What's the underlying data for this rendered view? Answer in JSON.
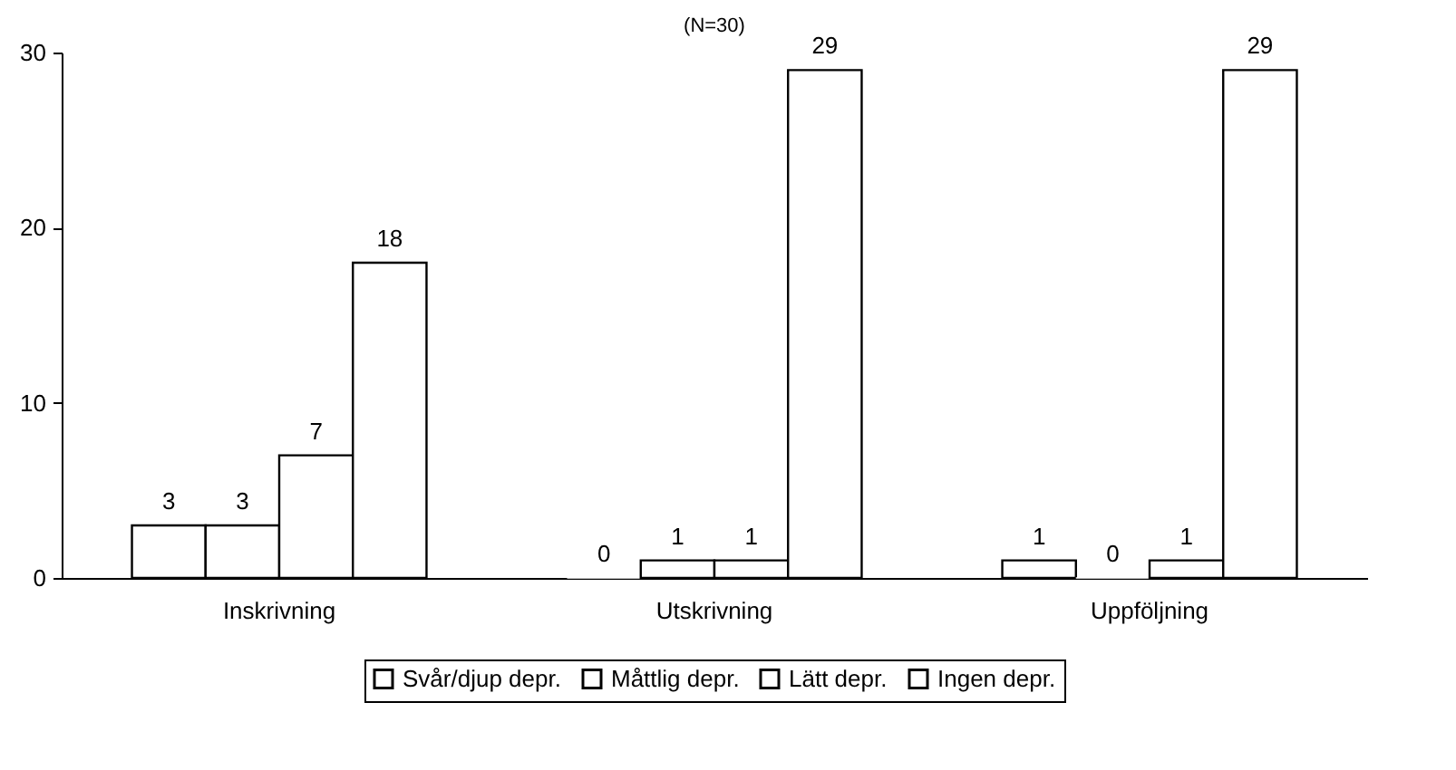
{
  "chart_data": {
    "type": "bar",
    "title": "(N=30)",
    "categories": [
      "Inskrivning",
      "Utskrivning",
      "Uppföljning"
    ],
    "series": [
      {
        "name": "Svår/djup depr.",
        "color": "#ffffff",
        "values": [
          3,
          0,
          1
        ]
      },
      {
        "name": "Måttlig depr.",
        "color": "#ffffff",
        "values": [
          3,
          1,
          0
        ]
      },
      {
        "name": "Lätt depr.",
        "color": "#ffffff",
        "values": [
          7,
          1,
          1
        ]
      },
      {
        "name": "Ingen depr.",
        "color": "#ffffff",
        "values": [
          18,
          29,
          29
        ]
      }
    ],
    "ylim": [
      0,
      30
    ],
    "yticks": [
      0,
      10,
      20,
      30
    ],
    "grid": false,
    "legend": "bottom",
    "data_labels": true
  }
}
